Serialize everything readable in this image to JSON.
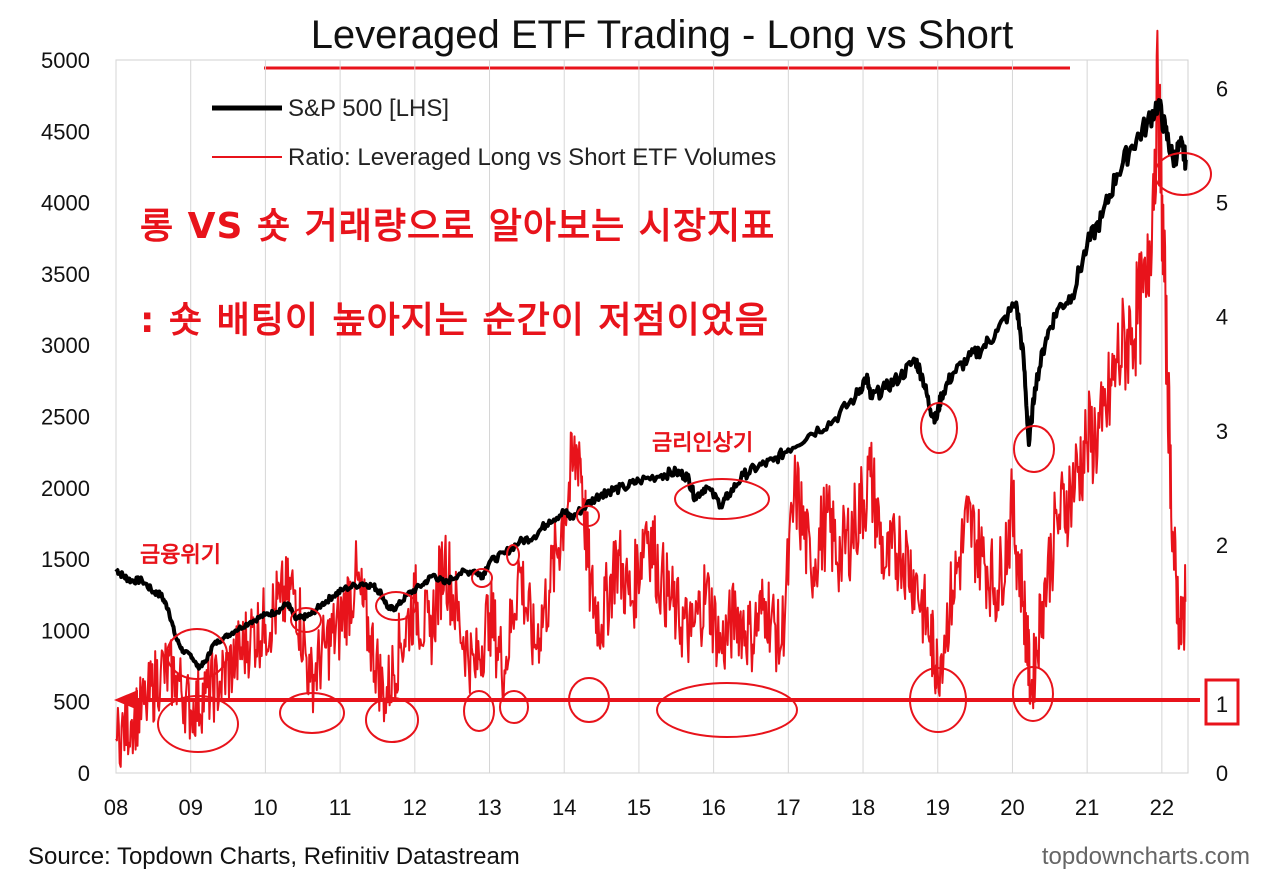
{
  "chart_data": {
    "type": "line",
    "title": "Leveraged ETF Trading - Long vs Short",
    "source": "Source: Topdown Charts, Refinitiv Datastream",
    "watermark": "topdowncharts.com",
    "x_ticks": [
      "08",
      "09",
      "10",
      "11",
      "12",
      "13",
      "14",
      "15",
      "16",
      "17",
      "18",
      "19",
      "20",
      "21",
      "22"
    ],
    "y_left_ticks": [
      "0",
      "500",
      "1000",
      "1500",
      "2000",
      "2500",
      "3000",
      "3500",
      "4000",
      "4500",
      "5000"
    ],
    "y_right_ticks": [
      "0",
      "1",
      "2",
      "3",
      "4",
      "5",
      "6"
    ],
    "ylim_left": [
      0,
      5000
    ],
    "ylim_right": [
      0,
      6.25
    ],
    "xlim": [
      2008.0,
      2022.35
    ],
    "legend": [
      {
        "name": "S&P 500 [LHS]",
        "color": "#000000"
      },
      {
        "name": "Ratio: Leveraged Long vs Short ETF Volumes",
        "color": "#e8131b"
      }
    ],
    "series": [
      {
        "name": "S&P 500 [LHS]",
        "color": "#000000",
        "x": [
          2008.0,
          2008.1,
          2008.2,
          2008.35,
          2008.5,
          2008.6,
          2008.7,
          2008.8,
          2008.9,
          2009.0,
          2009.1,
          2009.2,
          2009.3,
          2009.45,
          2009.6,
          2009.8,
          2010.0,
          2010.15,
          2010.3,
          2010.4,
          2010.5,
          2010.6,
          2010.75,
          2010.9,
          2011.05,
          2011.3,
          2011.45,
          2011.55,
          2011.65,
          2011.75,
          2011.9,
          2012.1,
          2012.25,
          2012.4,
          2012.6,
          2012.8,
          2012.9,
          2013.0,
          2013.2,
          2013.4,
          2013.6,
          2013.8,
          2014.0,
          2014.1,
          2014.3,
          2014.5,
          2014.6,
          2014.8,
          2015.0,
          2015.3,
          2015.5,
          2015.65,
          2015.75,
          2015.9,
          2016.1,
          2016.2,
          2016.4,
          2016.6,
          2016.8,
          2017.0,
          2017.3,
          2017.6,
          2017.9,
          2018.05,
          2018.1,
          2018.3,
          2018.5,
          2018.7,
          2018.8,
          2018.9,
          2018.98,
          2019.05,
          2019.2,
          2019.4,
          2019.6,
          2019.8,
          2020.05,
          2020.15,
          2020.22,
          2020.3,
          2020.45,
          2020.6,
          2020.8,
          2021.0,
          2021.2,
          2021.4,
          2021.6,
          2021.8,
          2021.95,
          2022.05,
          2022.15,
          2022.25,
          2022.32
        ],
        "values": [
          1430,
          1380,
          1350,
          1350,
          1270,
          1250,
          1150,
          950,
          850,
          830,
          740,
          780,
          900,
          950,
          1000,
          1060,
          1110,
          1130,
          1190,
          1080,
          1090,
          1110,
          1180,
          1240,
          1290,
          1330,
          1310,
          1260,
          1150,
          1160,
          1250,
          1320,
          1390,
          1330,
          1400,
          1420,
          1380,
          1480,
          1540,
          1620,
          1660,
          1770,
          1830,
          1790,
          1880,
          1960,
          1980,
          2000,
          2050,
          2090,
          2110,
          2080,
          1930,
          2010,
          1880,
          1950,
          2090,
          2150,
          2190,
          2270,
          2380,
          2470,
          2640,
          2780,
          2630,
          2700,
          2780,
          2900,
          2770,
          2550,
          2480,
          2650,
          2800,
          2900,
          2980,
          3100,
          3300,
          2900,
          2300,
          2700,
          3050,
          3250,
          3350,
          3700,
          3900,
          4200,
          4400,
          4550,
          4700,
          4500,
          4300,
          4400,
          4300
        ]
      },
      {
        "name": "Ratio: Leveraged Long vs Short ETF Volumes",
        "color": "#e8131b",
        "x": [
          2008.0,
          2008.2,
          2008.4,
          2008.6,
          2008.8,
          2009.0,
          2009.2,
          2009.4,
          2009.6,
          2009.8,
          2010.0,
          2010.2,
          2010.4,
          2010.6,
          2010.8,
          2011.0,
          2011.2,
          2011.4,
          2011.6,
          2011.8,
          2012.0,
          2012.2,
          2012.4,
          2012.6,
          2012.8,
          2013.0,
          2013.2,
          2013.4,
          2013.6,
          2013.8,
          2014.0,
          2014.2,
          2014.35,
          2014.5,
          2014.7,
          2014.9,
          2015.1,
          2015.3,
          2015.5,
          2015.7,
          2015.9,
          2016.1,
          2016.3,
          2016.5,
          2016.7,
          2016.9,
          2017.1,
          2017.3,
          2017.5,
          2017.7,
          2017.9,
          2018.1,
          2018.3,
          2018.5,
          2018.7,
          2018.9,
          2019.0,
          2019.2,
          2019.4,
          2019.6,
          2019.8,
          2020.0,
          2020.15,
          2020.25,
          2020.4,
          2020.6,
          2020.8,
          2021.0,
          2021.2,
          2021.4,
          2021.6,
          2021.8,
          2021.95,
          2022.05,
          2022.15,
          2022.25,
          2022.32
        ],
        "values": [
          0.3,
          0.45,
          0.6,
          0.9,
          0.85,
          0.55,
          0.7,
          0.8,
          1.0,
          1.2,
          1.3,
          1.5,
          1.6,
          0.8,
          1.1,
          1.3,
          1.7,
          1.2,
          0.65,
          1.1,
          1.5,
          1.2,
          1.9,
          1.3,
          0.9,
          1.4,
          0.9,
          1.8,
          1.1,
          1.6,
          2.3,
          2.9,
          1.6,
          1.3,
          1.9,
          1.5,
          2.2,
          1.7,
          1.4,
          1.2,
          1.6,
          1.1,
          1.4,
          1.2,
          1.5,
          1.1,
          2.5,
          1.8,
          2.2,
          1.9,
          2.2,
          2.6,
          1.8,
          2.0,
          1.7,
          1.2,
          0.9,
          1.6,
          2.2,
          1.9,
          1.6,
          2.3,
          1.5,
          0.7,
          1.5,
          2.2,
          2.5,
          2.9,
          3.0,
          3.6,
          3.9,
          4.2,
          6.0,
          4.0,
          2.0,
          1.2,
          1.5
        ]
      }
    ],
    "annotations": {
      "headline1": "롱 VS 숏 거래량으로 알아보는 시장지표",
      "headline2": ": 숏 배팅이 높아지는 순간이 저점이었음",
      "crisis_label": "금융위기",
      "rate_hike_label": "금리인상기",
      "box_label": "1"
    }
  }
}
